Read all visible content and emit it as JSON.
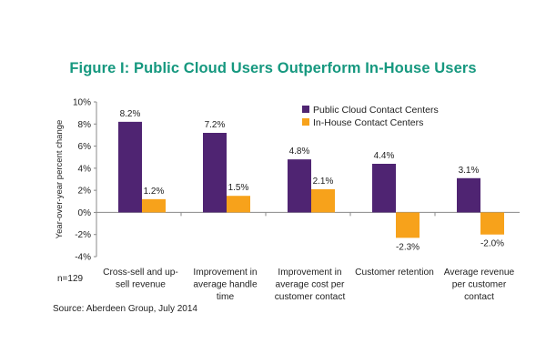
{
  "chart_data": {
    "type": "bar",
    "title": "Figure I: Public Cloud Users Outperform In-House Users",
    "ylabel": "Year-over-year percent change",
    "xlabel": "",
    "ylim": [
      -4,
      10
    ],
    "yticks": [
      "10%",
      "8%",
      "6%",
      "4%",
      "2%",
      "0%",
      "-2%",
      "-4%"
    ],
    "ytick_values": [
      10,
      8,
      6,
      4,
      2,
      0,
      -2,
      -4
    ],
    "grid": false,
    "legend_position": "top-right",
    "categories": [
      [
        "Cross-sell and up-",
        "sell revenue"
      ],
      [
        "Improvement in",
        "average handle",
        "time"
      ],
      [
        "Improvement in",
        "average cost per",
        "customer contact"
      ],
      [
        "Customer retention"
      ],
      [
        "Average revenue",
        "per customer",
        "contact"
      ]
    ],
    "series": [
      {
        "name": "Public Cloud Contact Centers",
        "color": "#4f2472",
        "values": [
          8.2,
          7.2,
          4.8,
          4.4,
          3.1
        ],
        "labels": [
          "8.2%",
          "7.2%",
          "4.8%",
          "4.4%",
          "3.1%"
        ]
      },
      {
        "name": "In-House Contact Centers",
        "color": "#f7a21b",
        "values": [
          1.2,
          1.5,
          2.1,
          -2.3,
          -2.0
        ],
        "labels": [
          "1.2%",
          "1.5%",
          "2.1%",
          "-2.3%",
          "-2.0%"
        ]
      }
    ]
  },
  "notes": {
    "sample": "n=129",
    "source": "Source: Aberdeen Group, July 2014"
  }
}
